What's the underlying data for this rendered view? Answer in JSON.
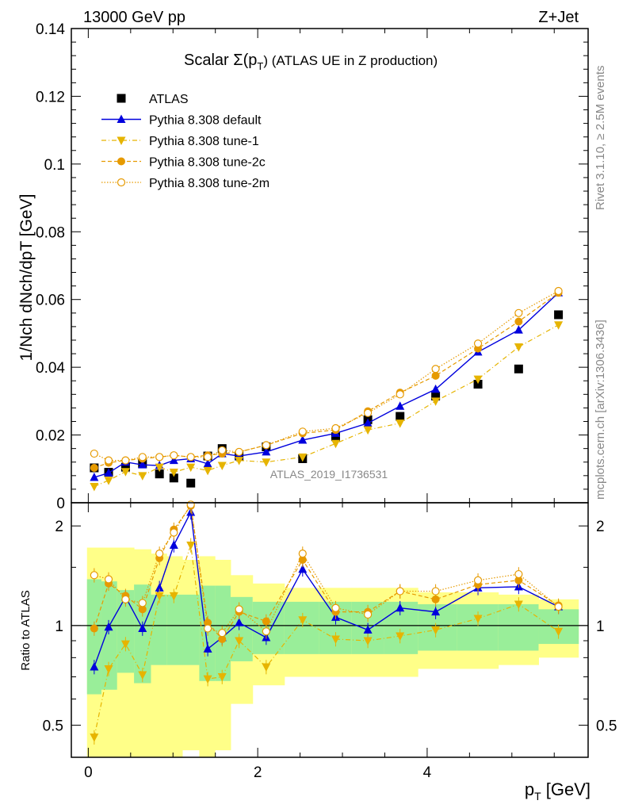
{
  "header": {
    "left": "13000 GeV pp",
    "right": "Z+Jet"
  },
  "side_labels": {
    "rivet": "Rivet 3.1.10, ≥ 2.5M events",
    "mcplots": "mcplots.cern.ch [arXiv:1306.3436]"
  },
  "watermark": "ATLAS_2019_I1736531",
  "colors": {
    "atlas": "#000000",
    "default": "#0000dd",
    "tune1": "#e6b400",
    "tune2c": "#e69a00",
    "tune2m": "#e69a00",
    "band_inner": "#99ee99",
    "band_outer": "#ffff88"
  },
  "chart_data": [
    {
      "type": "line",
      "title": "Scalar Σ(pT) (ATLAS UE in Z production)",
      "title_main": "Scalar Σ(p",
      "title_sub": "T",
      "title_tail": ") (ATLAS UE in Z production)",
      "ylabel": "1/Nch dNch/dpT [GeV]",
      "ylim": [
        0,
        0.14
      ],
      "yticks": [
        "0",
        "0.02",
        "0.04",
        "0.06",
        "0.08",
        "0.1",
        "0.12",
        "0.14"
      ],
      "legend_placement": "top-left",
      "x": [
        0.07,
        0.24,
        0.44,
        0.64,
        0.84,
        1.01,
        1.21,
        1.41,
        1.58,
        1.78,
        2.1,
        2.53,
        2.92,
        3.3,
        3.68,
        4.1,
        4.6,
        5.08,
        5.55
      ],
      "series": [
        {
          "name": "ATLAS",
          "key": "atlas",
          "marker": "square",
          "values": [
            0.0103,
            0.009,
            0.0105,
            0.0115,
            0.0085,
            0.0073,
            0.0058,
            0.0138,
            0.016,
            0.0138,
            0.0165,
            0.013,
            0.0195,
            0.0245,
            0.0255,
            0.0315,
            0.035,
            0.0395,
            0.0555
          ]
        },
        {
          "name": "Pythia 8.308 default",
          "key": "default",
          "marker": "triangle-up",
          "values": [
            0.0075,
            0.0088,
            0.012,
            0.0112,
            0.011,
            0.0125,
            0.013,
            0.0115,
            0.0145,
            0.0138,
            0.015,
            0.0185,
            0.0205,
            0.0235,
            0.0285,
            0.0335,
            0.0445,
            0.051,
            0.062
          ]
        },
        {
          "name": "Pythia 8.308 tune-1",
          "key": "tune1",
          "marker": "triangle-down",
          "values": [
            0.0048,
            0.0066,
            0.0092,
            0.008,
            0.0105,
            0.009,
            0.0105,
            0.0095,
            0.011,
            0.0125,
            0.012,
            0.0135,
            0.0175,
            0.0215,
            0.0235,
            0.03,
            0.0365,
            0.046,
            0.0525
          ]
        },
        {
          "name": "Pythia 8.308 tune-2c",
          "key": "tune2c",
          "marker": "circle",
          "values": [
            0.0103,
            0.0118,
            0.0125,
            0.013,
            0.0135,
            0.014,
            0.0135,
            0.014,
            0.0145,
            0.015,
            0.017,
            0.0205,
            0.0215,
            0.027,
            0.0325,
            0.0375,
            0.0455,
            0.0535,
            0.062
          ]
        },
        {
          "name": "Pythia 8.308 tune-2m",
          "key": "tune2m",
          "marker": "open-circle",
          "values": [
            0.0145,
            0.0125,
            0.0125,
            0.0135,
            0.0135,
            0.014,
            0.0135,
            0.0135,
            0.0155,
            0.015,
            0.017,
            0.021,
            0.022,
            0.0265,
            0.032,
            0.0395,
            0.047,
            0.056,
            0.0625
          ]
        }
      ]
    },
    {
      "type": "line",
      "ylabel": "Ratio to ATLAS",
      "xlabel": "pT [GeV]",
      "xlabel_main": "p",
      "xlabel_sub": "T",
      "xlabel_tail": " [GeV]",
      "xlim": [
        -0.2,
        5.9
      ],
      "ylim": [
        0.4,
        2.35
      ],
      "log_y": true,
      "xticks": [
        "0",
        "2",
        "4"
      ],
      "yticks": [
        "0.5",
        "1",
        "2"
      ],
      "band_inner_half": [
        0.38,
        0.36,
        0.28,
        0.33,
        0.24,
        0.24,
        0.24,
        0.32,
        0.32,
        0.22,
        0.18,
        0.18,
        0.18,
        0.18,
        0.18,
        0.16,
        0.16,
        0.16,
        0.12
      ],
      "band_outer_half": [
        0.72,
        0.72,
        0.72,
        0.7,
        0.65,
        0.62,
        0.58,
        0.62,
        0.58,
        0.42,
        0.34,
        0.3,
        0.3,
        0.3,
        0.3,
        0.26,
        0.26,
        0.24,
        0.2
      ],
      "series": [
        {
          "key": "default",
          "values": [
            0.75,
            0.99,
            1.22,
            0.98,
            1.3,
            1.75,
            2.2,
            0.85,
            0.92,
            1.02,
            0.92,
            1.48,
            1.06,
            0.97,
            1.13,
            1.1,
            1.3,
            1.31,
            1.14
          ]
        },
        {
          "key": "tune1",
          "values": [
            0.46,
            0.74,
            0.88,
            0.71,
            1.23,
            1.23,
            1.75,
            0.69,
            0.7,
            0.9,
            0.75,
            1.04,
            0.91,
            0.9,
            0.93,
            0.97,
            1.05,
            1.16,
            0.96
          ]
        },
        {
          "key": "tune2c",
          "values": [
            0.98,
            1.34,
            1.23,
            1.12,
            1.6,
            1.95,
            2.3,
            1.02,
            0.91,
            1.1,
            1.03,
            1.58,
            1.1,
            1.1,
            1.27,
            1.2,
            1.33,
            1.37,
            1.15
          ]
        },
        {
          "key": "tune2m",
          "values": [
            1.42,
            1.38,
            1.2,
            1.17,
            1.65,
            1.91,
            2.32,
            0.98,
            0.95,
            1.12,
            0.96,
            1.65,
            1.13,
            1.08,
            1.27,
            1.27,
            1.37,
            1.43,
            1.14
          ]
        }
      ]
    }
  ]
}
